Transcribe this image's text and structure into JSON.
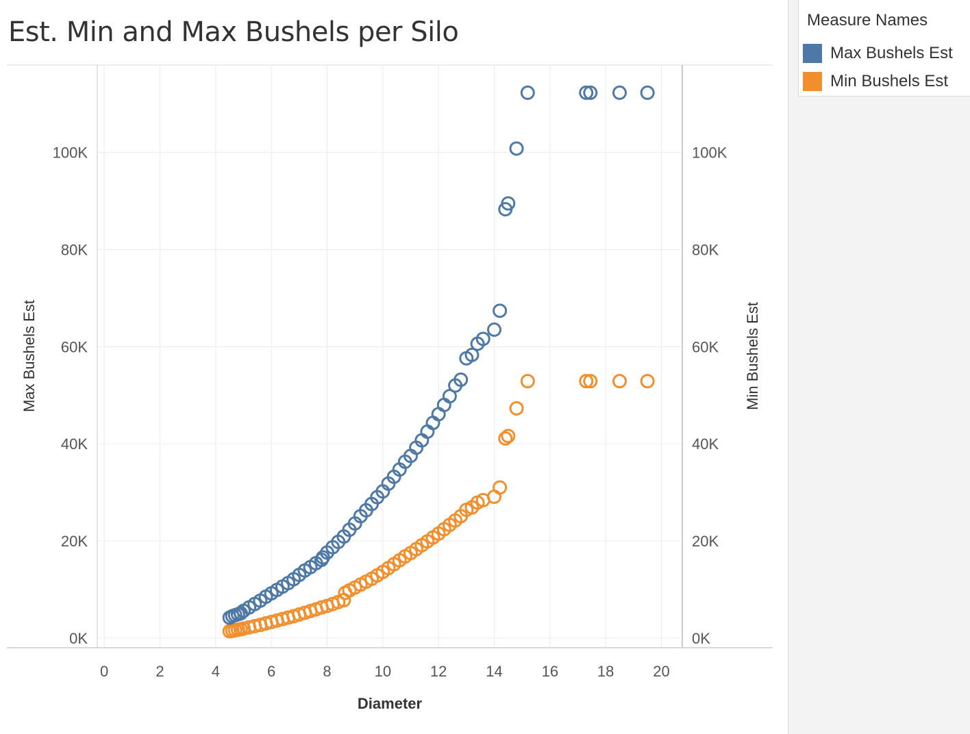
{
  "title": "Est. Min and Max Bushels per Silo",
  "legend": {
    "title": "Measure Names",
    "items": [
      {
        "label": "Max Bushels Est",
        "color": "#4e79a7"
      },
      {
        "label": "Min Bushels Est",
        "color": "#f28e2b"
      }
    ]
  },
  "chart_data": {
    "type": "scatter",
    "title": "Est. Min and Max Bushels per Silo",
    "xlabel": "Diameter",
    "ylabel": "Max Bushels Est",
    "y2label": "Min Bushels Est",
    "xlim": [
      -0.25,
      20.75
    ],
    "ylim": [
      -2000,
      118000
    ],
    "x_ticks": [
      0,
      2,
      4,
      6,
      8,
      10,
      12,
      14,
      16,
      18,
      20
    ],
    "y_ticks": [
      0,
      20000,
      40000,
      60000,
      80000,
      100000
    ],
    "y_tick_labels": [
      "0K",
      "20K",
      "40K",
      "60K",
      "80K",
      "100K"
    ],
    "marker": "open-circle",
    "series": [
      {
        "name": "Max Bushels Est",
        "color": "#4e79a7",
        "x": [
          4.5,
          4.6,
          4.7,
          4.8,
          4.9,
          5.0,
          5.2,
          5.4,
          5.6,
          5.8,
          6.0,
          6.2,
          6.4,
          6.6,
          6.8,
          7.0,
          7.2,
          7.4,
          7.6,
          7.8,
          7.85,
          8.0,
          8.2,
          8.4,
          8.6,
          8.8,
          9.0,
          9.2,
          9.4,
          9.6,
          9.8,
          10.0,
          10.2,
          10.4,
          10.6,
          10.8,
          11.0,
          11.2,
          11.4,
          11.6,
          11.8,
          12.0,
          12.2,
          12.4,
          12.6,
          12.8,
          13.0,
          13.2,
          13.4,
          13.6,
          14.0,
          14.2,
          14.4,
          14.5,
          14.8,
          15.2,
          17.3,
          17.45,
          18.5,
          19.5
        ],
        "y": [
          4200,
          4500,
          4700,
          4900,
          5100,
          5600,
          6300,
          7000,
          7700,
          8500,
          9200,
          9900,
          10600,
          11300,
          12100,
          13000,
          13900,
          14600,
          15400,
          16100,
          16600,
          17600,
          18700,
          19800,
          20900,
          22300,
          23600,
          25100,
          26300,
          27600,
          29000,
          30200,
          31800,
          33200,
          34700,
          36300,
          37500,
          39200,
          40700,
          42500,
          44300,
          46100,
          48000,
          49800,
          52000,
          53200,
          57600,
          58300,
          60600,
          61600,
          63500,
          67400,
          88300,
          89500,
          100800,
          112300,
          112300,
          112300,
          112300,
          112300
        ],
        "x_note": ""
      },
      {
        "name": "Min Bushels Est",
        "color": "#f28e2b",
        "x": [
          4.5,
          4.6,
          4.7,
          4.8,
          4.9,
          5.0,
          5.2,
          5.4,
          5.6,
          5.8,
          6.0,
          6.2,
          6.4,
          6.6,
          6.8,
          7.0,
          7.2,
          7.4,
          7.6,
          7.8,
          8.0,
          8.2,
          8.4,
          8.6,
          8.65,
          8.8,
          9.0,
          9.2,
          9.4,
          9.6,
          9.8,
          10.0,
          10.2,
          10.4,
          10.6,
          10.8,
          11.0,
          11.2,
          11.4,
          11.6,
          11.8,
          12.0,
          12.2,
          12.4,
          12.6,
          12.8,
          13.0,
          13.2,
          13.4,
          13.6,
          14.0,
          14.2,
          14.4,
          14.5,
          14.8,
          15.2,
          17.3,
          17.45,
          18.5,
          19.5
        ],
        "y": [
          1400,
          1500,
          1600,
          1700,
          1800,
          1950,
          2200,
          2450,
          2700,
          3000,
          3300,
          3600,
          3900,
          4200,
          4500,
          4850,
          5200,
          5550,
          5900,
          6300,
          6600,
          7000,
          7400,
          7800,
          9300,
          9800,
          10400,
          11000,
          11600,
          12200,
          12900,
          13600,
          14400,
          15200,
          16000,
          16800,
          17500,
          18300,
          19100,
          19900,
          20700,
          21500,
          22400,
          23300,
          24200,
          25100,
          26400,
          26900,
          27900,
          28400,
          29100,
          31000,
          41100,
          41600,
          47300,
          52900,
          52900,
          52900,
          52900,
          52900
        ]
      }
    ]
  }
}
